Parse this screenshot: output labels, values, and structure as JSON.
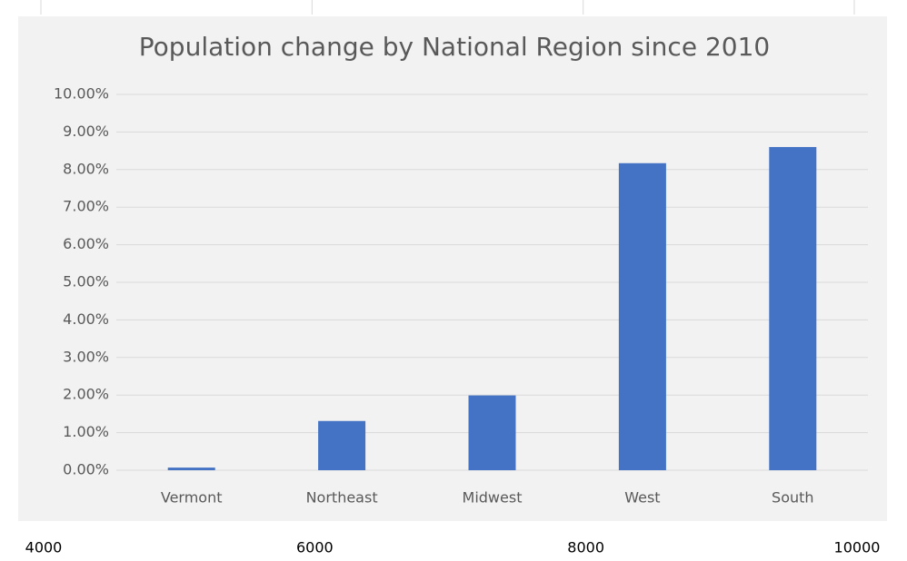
{
  "chart_data": {
    "type": "bar",
    "title": "Population change by National Region since 2010",
    "categories": [
      "Vermont",
      "Northeast",
      "Midwest",
      "West",
      "South"
    ],
    "values": [
      0.07,
      1.31,
      1.99,
      8.17,
      8.6
    ],
    "color": "#4472c4",
    "ylim": [
      0,
      10
    ],
    "yticks": [
      {
        "value": 0,
        "label": "0.00%"
      },
      {
        "value": 1,
        "label": "1.00%"
      },
      {
        "value": 2,
        "label": "2.00%"
      },
      {
        "value": 3,
        "label": "3.00%"
      },
      {
        "value": 4,
        "label": "4.00%"
      },
      {
        "value": 5,
        "label": "5.00%"
      },
      {
        "value": 6,
        "label": "6.00%"
      },
      {
        "value": 7,
        "label": "7.00%"
      },
      {
        "value": 8,
        "label": "8.00%"
      },
      {
        "value": 9,
        "label": "9.00%"
      },
      {
        "value": 10,
        "label": "10.00%"
      }
    ],
    "grid": true,
    "outer_axis": {
      "xlim": [
        4000,
        10000
      ],
      "xticks": [
        4000,
        6000,
        8000,
        10000
      ]
    }
  }
}
